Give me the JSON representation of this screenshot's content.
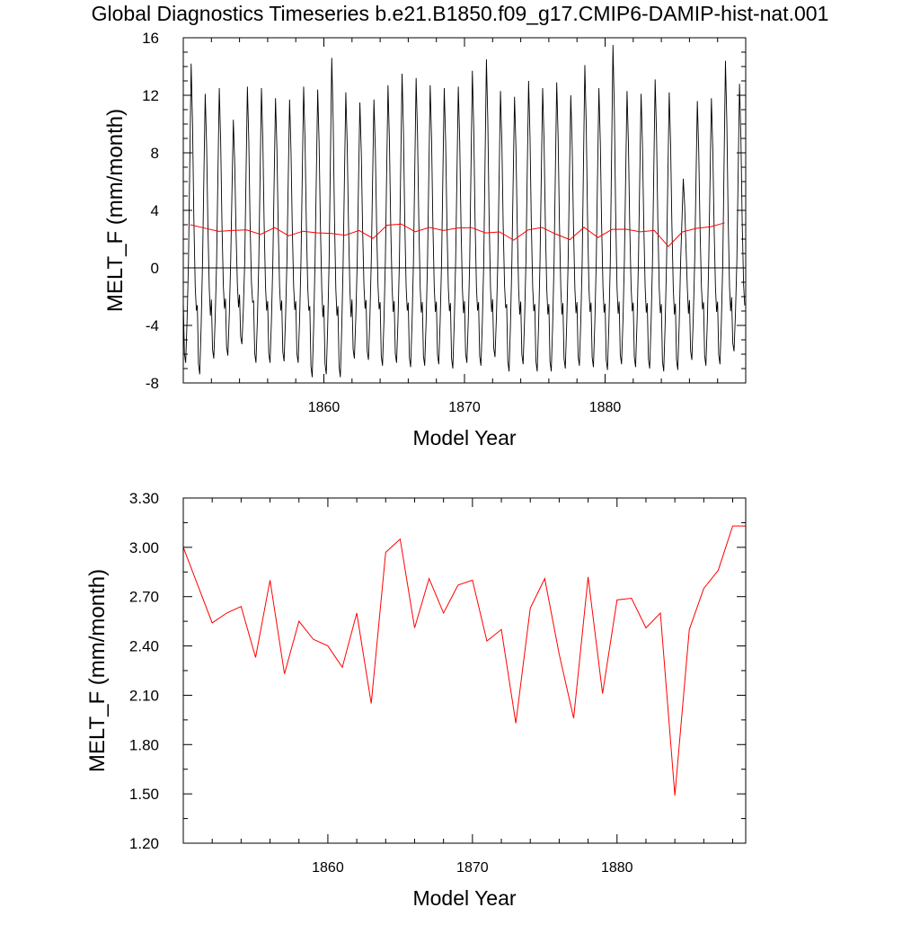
{
  "chart_data": [
    {
      "type": "line",
      "title": "Global Diagnostics Timeseries b.e21.B1850.f09_g17.CMIP6-DAMIP-hist-nat.001",
      "xlabel": "Model Year",
      "ylabel": "MELT_F (mm/month)",
      "xlim": [
        1850,
        1890
      ],
      "ylim": [
        -8,
        16
      ],
      "xticks": [
        1860,
        1870,
        1880
      ],
      "yticks": [
        -8,
        -4,
        0,
        4,
        8,
        12,
        16
      ],
      "ytick_labels": [
        "-8",
        "-4",
        "0",
        "4",
        "8",
        "12",
        "16"
      ],
      "zero_line": true,
      "series": [
        {
          "kind": "monthly",
          "color": "#000000",
          "start_year": 1850,
          "annual_peaks": [
            14.2,
            12.1,
            12.5,
            10.3,
            12.6,
            12.5,
            11.8,
            11.7,
            12.6,
            12.4,
            14.6,
            12.2,
            11.5,
            11.7,
            12.7,
            13.5,
            13.2,
            12.7,
            12.5,
            12.6,
            13.7,
            14.5,
            12.3,
            11.9,
            13.0,
            12.5,
            12.9,
            12.0,
            14.1,
            12.5,
            15.5,
            12.3,
            12.1,
            13.1,
            12.2,
            6.2,
            11.6,
            11.8,
            14.4,
            12.8
          ],
          "annual_minima": [
            -6.6,
            -7.4,
            -6.3,
            -6.1,
            -5.3,
            -6.6,
            -6.6,
            -6.5,
            -6.6,
            -7.6,
            -7.4,
            -7.6,
            -6.3,
            -6.4,
            -6.8,
            -6.6,
            -6.9,
            -6.8,
            -6.7,
            -7.0,
            -6.6,
            -6.8,
            -6.2,
            -7.2,
            -6.7,
            -7.2,
            -7.2,
            -7.0,
            -6.8,
            -6.9,
            -7.1,
            -6.7,
            -6.9,
            -7.0,
            -7.2,
            -7.1,
            -6.4,
            -6.8,
            -6.7,
            -5.8
          ]
        },
        {
          "kind": "annual_mean",
          "color": "#ff0000",
          "x": [
            1850.5,
            1851.5,
            1852.5,
            1853.5,
            1854.5,
            1855.5,
            1856.5,
            1857.5,
            1858.5,
            1859.5,
            1860.5,
            1861.5,
            1862.5,
            1863.5,
            1864.5,
            1865.5,
            1866.5,
            1867.5,
            1868.5,
            1869.5,
            1870.5,
            1871.5,
            1872.5,
            1873.5,
            1874.5,
            1875.5,
            1876.5,
            1877.5,
            1878.5,
            1879.5,
            1880.5,
            1881.5,
            1882.5,
            1883.5,
            1884.5,
            1885.5,
            1886.5,
            1887.5,
            1888.5
          ],
          "values": [
            3.0,
            2.77,
            2.54,
            2.6,
            2.64,
            2.33,
            2.8,
            2.23,
            2.55,
            2.44,
            2.4,
            2.27,
            2.6,
            2.05,
            2.97,
            3.05,
            2.51,
            2.81,
            2.6,
            2.77,
            2.8,
            2.43,
            2.5,
            1.93,
            2.63,
            2.81,
            2.35,
            1.96,
            2.82,
            2.11,
            2.68,
            2.69,
            2.51,
            2.6,
            1.49,
            2.5,
            2.75,
            2.86,
            3.13
          ]
        }
      ]
    },
    {
      "type": "line",
      "title": "",
      "xlabel": "Model Year",
      "ylabel": "MELT_F (mm/month)",
      "xlim": [
        1850,
        1888.9
      ],
      "ylim": [
        1.2,
        3.3
      ],
      "xticks": [
        1860,
        1870,
        1880
      ],
      "yticks": [
        1.2,
        1.5,
        1.8,
        2.1,
        2.4,
        2.7,
        3.0,
        3.3
      ],
      "ytick_labels": [
        "1.20",
        "1.50",
        "1.80",
        "2.10",
        "2.40",
        "2.70",
        "3.00",
        "3.30"
      ],
      "series": [
        {
          "kind": "annual_mean",
          "color": "#ff0000",
          "x": [
            1850,
            1852,
            1853,
            1854,
            1855,
            1856,
            1857,
            1858,
            1859,
            1860,
            1861,
            1862,
            1863,
            1864,
            1865,
            1866,
            1867,
            1868,
            1869,
            1870,
            1871,
            1872,
            1873,
            1874,
            1875,
            1876,
            1877,
            1878,
            1879,
            1880,
            1881,
            1882,
            1883,
            1884,
            1885,
            1886,
            1887,
            1888,
            1888.9
          ],
          "values": [
            3.0,
            2.54,
            2.6,
            2.64,
            2.33,
            2.8,
            2.23,
            2.55,
            2.44,
            2.4,
            2.27,
            2.6,
            2.05,
            2.97,
            3.05,
            2.51,
            2.81,
            2.6,
            2.77,
            2.8,
            2.43,
            2.5,
            1.93,
            2.63,
            2.81,
            2.35,
            1.96,
            2.82,
            2.11,
            2.68,
            2.69,
            2.51,
            2.6,
            1.49,
            2.5,
            2.75,
            2.86,
            3.13,
            3.13
          ]
        }
      ]
    }
  ]
}
